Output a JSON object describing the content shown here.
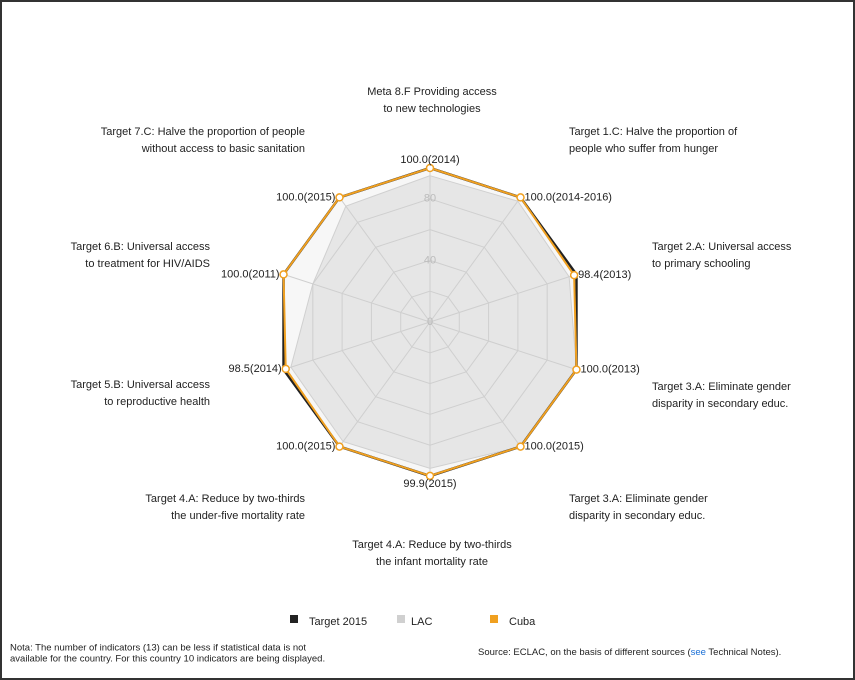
{
  "chart_data": {
    "type": "radar",
    "categories": [
      [
        "Meta 8.F Providing access",
        "to new technologies"
      ],
      [
        "Target 1.C: Halve the proportion of",
        "people who suffer from hunger"
      ],
      [
        "Target 2.A: Universal access",
        "to primary schooling"
      ],
      [
        "Target 3.A: Eliminate gender",
        "disparity in secondary educ."
      ],
      [
        "Target 3.A: Eliminate gender",
        "disparity in secondary educ."
      ],
      [
        "Target 4.A: Reduce by two-thirds",
        "the infant mortality rate"
      ],
      [
        "Target 4.A: Reduce by two-thirds",
        "the under-five mortality rate"
      ],
      [
        "Target 5.B: Universal access",
        "to reproductive health"
      ],
      [
        "Target 6.B: Universal access",
        "to treatment for HIV/AIDS"
      ],
      [
        "Target 7.C: Halve the proportion of people",
        "without access to basic sanitation"
      ]
    ],
    "series": [
      {
        "name": "Target 2015",
        "color": "#222222",
        "values": [
          100,
          100,
          100,
          100,
          100,
          100,
          100,
          100,
          100,
          100
        ]
      },
      {
        "name": "LAC",
        "color": "#d0d0d0",
        "values": [
          95,
          97,
          95,
          100,
          100,
          95,
          96,
          95,
          80,
          93
        ]
      },
      {
        "name": "Cuba",
        "color": "#f0a020",
        "values": [
          100,
          100,
          98.4,
          100,
          100,
          99.9,
          100,
          98.5,
          100,
          100
        ],
        "value_labels": [
          "100.0(2014)",
          "100.0(2014-2016)",
          "98.4(2013)",
          "100.0(2013)",
          "100.0(2015)",
          "99.9(2015)",
          "100.0(2015)",
          "98.5(2014)",
          "100.0(2011)",
          "100.0(2015)"
        ]
      }
    ],
    "ylim": [
      0,
      100
    ],
    "yticks": [
      0,
      40,
      80
    ],
    "grid_rings": [
      20,
      60,
      100
    ],
    "note": [
      "Nota: The number of indicators (13) can be less if statistical data is not",
      "available for the country. For this country 10 indicators are being displayed."
    ],
    "source": {
      "prefix": "Source: ECLAC, on the basis of different sources (",
      "link": "see",
      "suffix": " Technical Notes)."
    }
  }
}
